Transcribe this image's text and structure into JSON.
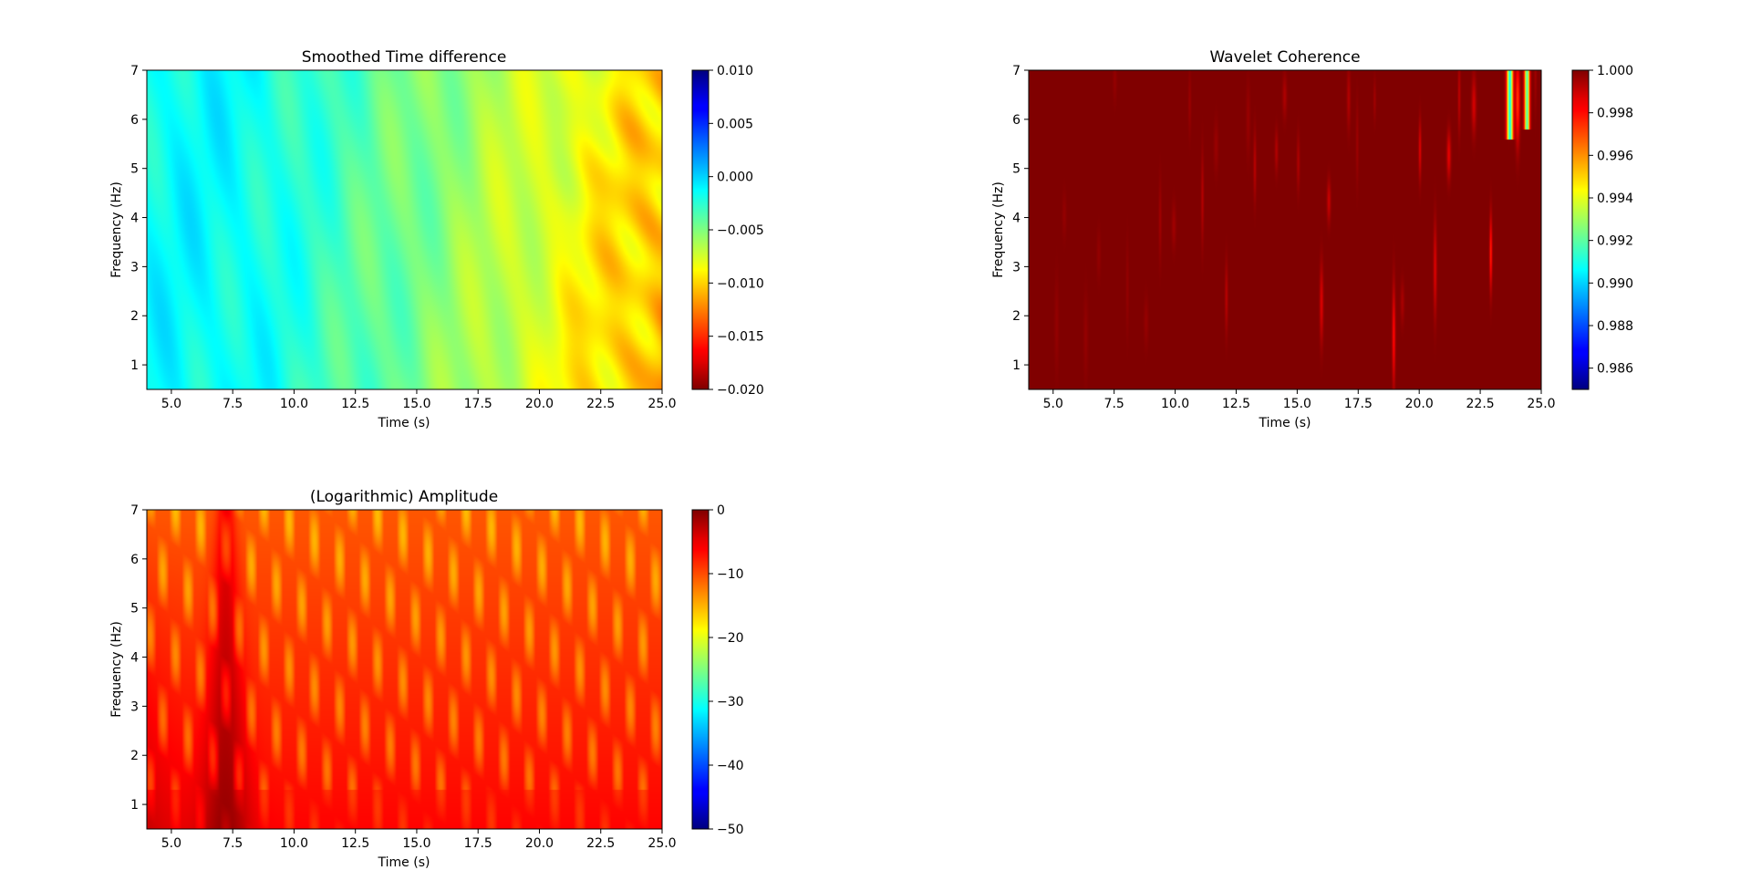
{
  "chart_data": [
    {
      "type": "heatmap",
      "title": "Smoothed Time difference",
      "xlabel": "Time (s)",
      "ylabel": "Frequency (Hz)",
      "xlim": [
        4.0,
        25.0
      ],
      "ylim": [
        0.5,
        7.0
      ],
      "xticks": [
        5.0,
        7.5,
        10.0,
        12.5,
        15.0,
        17.5,
        20.0,
        22.5,
        25.0
      ],
      "xtick_labels": [
        "5.0",
        "7.5",
        "10.0",
        "12.5",
        "15.0",
        "17.5",
        "20.0",
        "22.5",
        "25.0"
      ],
      "yticks": [
        1,
        2,
        3,
        4,
        5,
        6,
        7
      ],
      "ytick_labels": [
        "1",
        "2",
        "3",
        "4",
        "5",
        "6",
        "7"
      ],
      "colormap": "jet_r",
      "colorbar": {
        "min": -0.02,
        "max": 0.01,
        "ticks": [
          0.01,
          0.005,
          0.0,
          -0.005,
          -0.01,
          -0.015,
          -0.02
        ],
        "tick_labels": [
          "0.010",
          "0.005",
          "0.000",
          "−0.005",
          "−0.010",
          "−0.015",
          "−0.020"
        ]
      },
      "pattern": "time-diff",
      "grid": false
    },
    {
      "type": "heatmap",
      "title": "Wavelet Coherence",
      "xlabel": "Time (s)",
      "ylabel": "Frequency (Hz)",
      "xlim": [
        4.0,
        25.0
      ],
      "ylim": [
        0.5,
        7.0
      ],
      "xticks": [
        5.0,
        7.5,
        10.0,
        12.5,
        15.0,
        17.5,
        20.0,
        22.5,
        25.0
      ],
      "xtick_labels": [
        "5.0",
        "7.5",
        "10.0",
        "12.5",
        "15.0",
        "17.5",
        "20.0",
        "22.5",
        "25.0"
      ],
      "yticks": [
        1,
        2,
        3,
        4,
        5,
        6,
        7
      ],
      "ytick_labels": [
        "1",
        "2",
        "3",
        "4",
        "5",
        "6",
        "7"
      ],
      "colormap": "jet",
      "colorbar": {
        "min": 0.985,
        "max": 1.0,
        "ticks": [
          1.0,
          0.998,
          0.996,
          0.994,
          0.992,
          0.99,
          0.988,
          0.986
        ],
        "tick_labels": [
          "1.000",
          "0.998",
          "0.996",
          "0.994",
          "0.992",
          "0.990",
          "0.988",
          "0.986"
        ]
      },
      "pattern": "coherence",
      "grid": false
    },
    {
      "type": "heatmap",
      "title": "(Logarithmic) Amplitude",
      "xlabel": "Time (s)",
      "ylabel": "Frequency (Hz)",
      "xlim": [
        4.0,
        25.0
      ],
      "ylim": [
        0.5,
        7.0
      ],
      "xticks": [
        5.0,
        7.5,
        10.0,
        12.5,
        15.0,
        17.5,
        20.0,
        22.5,
        25.0
      ],
      "xtick_labels": [
        "5.0",
        "7.5",
        "10.0",
        "12.5",
        "15.0",
        "17.5",
        "20.0",
        "22.5",
        "25.0"
      ],
      "yticks": [
        1,
        2,
        3,
        4,
        5,
        6,
        7
      ],
      "ytick_labels": [
        "1",
        "2",
        "3",
        "4",
        "5",
        "6",
        "7"
      ],
      "colormap": "jet",
      "colorbar": {
        "min": -50,
        "max": 0,
        "ticks": [
          0,
          -10,
          -20,
          -30,
          -40,
          -50
        ],
        "tick_labels": [
          "0",
          "−10",
          "−20",
          "−30",
          "−40",
          "−50"
        ]
      },
      "pattern": "amplitude",
      "grid": false
    }
  ]
}
